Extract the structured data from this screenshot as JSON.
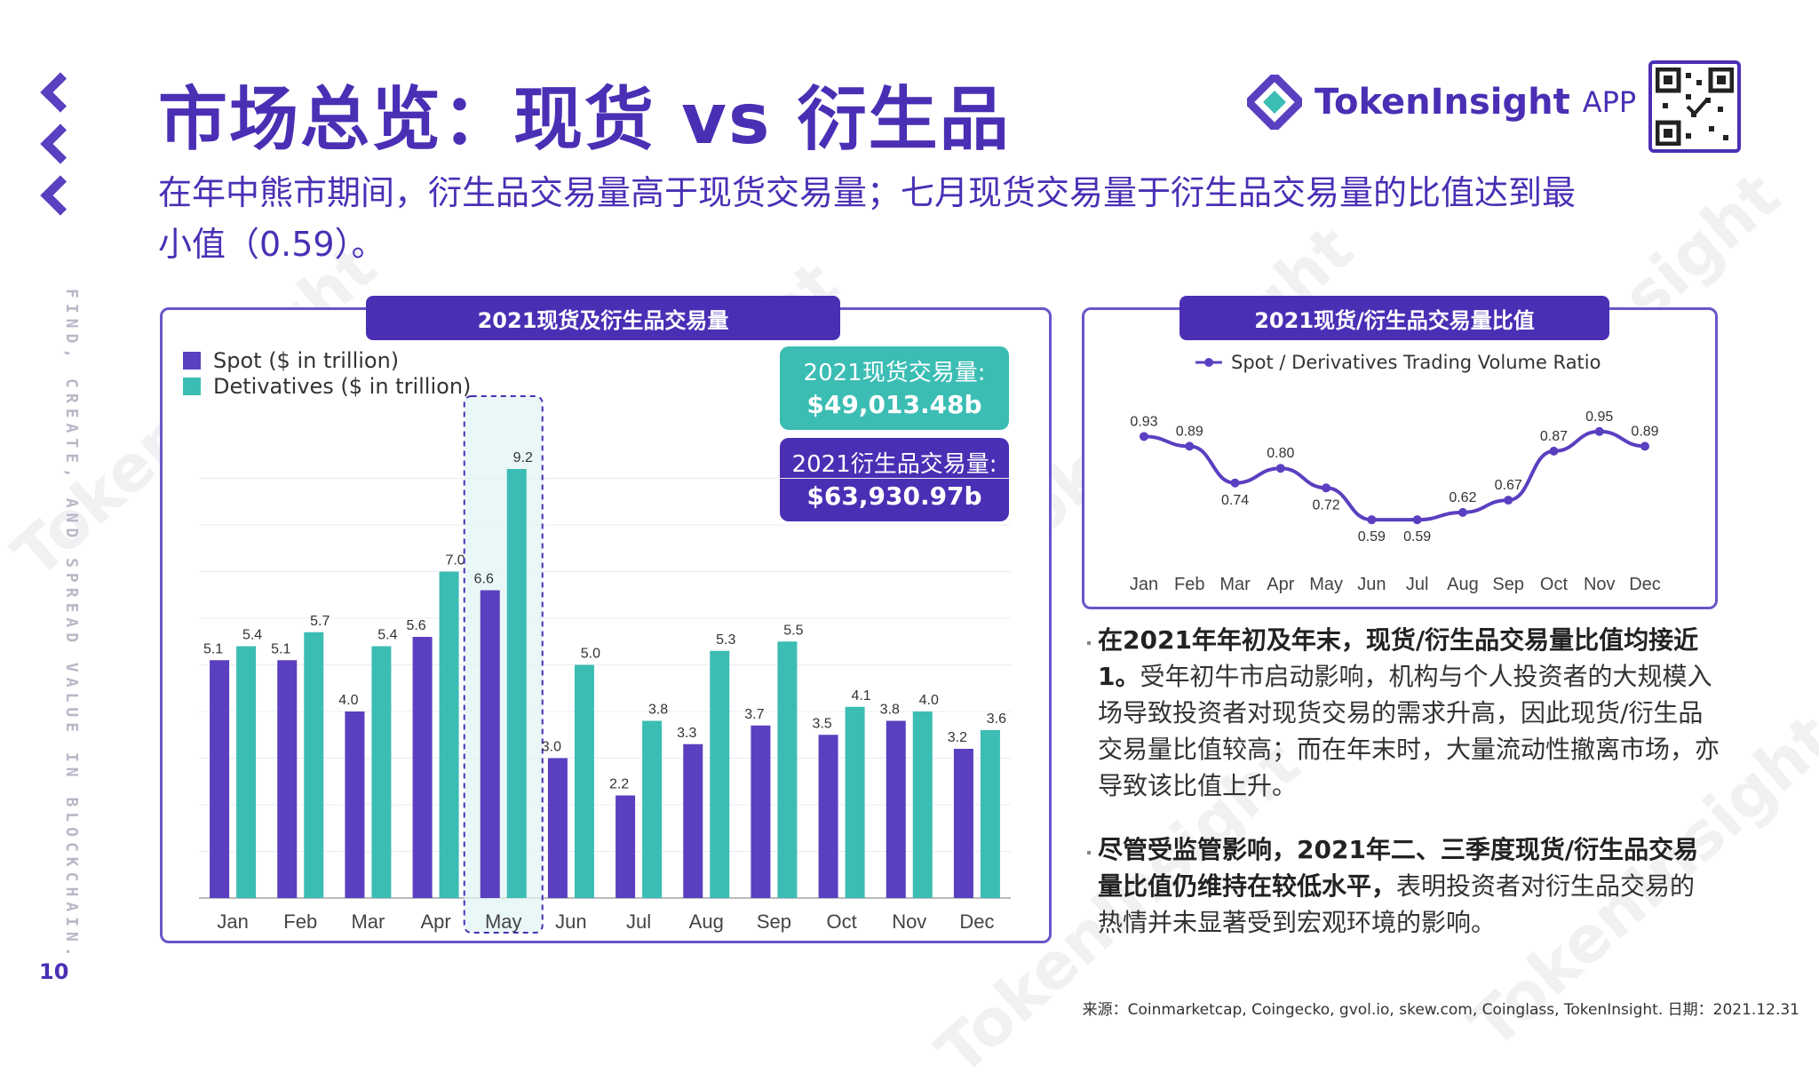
{
  "title": "市场总览：现货 vs 衍生品",
  "subtitle": "在年中熊市期间，衍生品交易量高于现货交易量；七月现货交易量于衍生品交易量的比值达到最小值（0.59）。",
  "brand": {
    "name": "TokenInsight",
    "app": "APP"
  },
  "tagline": "FIND, CREATE, AND SPREAD VALUE IN BLOCKCHAIN.",
  "page_number": "10",
  "left_panel": {
    "tab": "2021现货及衍生品交易量",
    "callout_spot": {
      "label": "2021现货交易量:",
      "value": "$49,013.48b"
    },
    "callout_deriv": {
      "label": "2021衍生品交易量:",
      "value": "$63,930.97b"
    }
  },
  "right_panel": {
    "tab": "2021现货/衍生品交易量比值"
  },
  "notes": {
    "p1_bold": "在2021年年初及年末，现货/衍生品交易量比值均接近1。",
    "p1_rest": "受年初牛市启动影响，机构与个人投资者的大规模入场导致投资者对现货交易的需求升高，因此现货/衍生品交易量比值较高；而在年末时，大量流动性撤离市场，亦导致该比值上升。",
    "p2_bold": "尽管受监管影响，2021年二、三季度现货/衍生品交易量比值仍维持在较低水平，",
    "p2_rest": "表明投资者对衍生品交易的热情并未显著受到宏观环境的影响。"
  },
  "source": "来源：Coinmarketcap, Coingecko, gvol.io, skew.com, Coinglass, TokenInsight. 日期：2021.12.31",
  "watermark": "TokenInsight",
  "colors": {
    "purple": "#5a3fc0",
    "teal": "#3bbdb4",
    "brand": "#4a2fb5"
  },
  "chart_data": [
    {
      "type": "bar",
      "categories": [
        "Jan",
        "Feb",
        "Mar",
        "Apr",
        "May",
        "Jun",
        "Jul",
        "Aug",
        "Sep",
        "Oct",
        "Nov",
        "Dec"
      ],
      "series": [
        {
          "name": "Spot ($ in trillion)",
          "values": [
            5.1,
            5.1,
            4.0,
            5.6,
            6.6,
            3.0,
            2.2,
            3.3,
            3.7,
            3.5,
            3.8,
            3.2
          ]
        },
        {
          "name": "Detivatives ($ in trillion)",
          "values": [
            5.4,
            5.7,
            5.4,
            7.0,
            9.2,
            5.0,
            3.8,
            5.3,
            5.5,
            4.1,
            4.0,
            3.6
          ]
        }
      ],
      "highlight_category": "May",
      "ylim": [
        0,
        10
      ],
      "grid": true,
      "legend": "top-left"
    },
    {
      "type": "line",
      "categories": [
        "Jan",
        "Feb",
        "Mar",
        "Apr",
        "May",
        "Jun",
        "Jul",
        "Aug",
        "Sep",
        "Oct",
        "Nov",
        "Dec"
      ],
      "series": [
        {
          "name": "Spot / Derivatives Trading Volume Ratio",
          "values": [
            0.93,
            0.89,
            0.74,
            0.8,
            0.72,
            0.59,
            0.59,
            0.62,
            0.67,
            0.87,
            0.95,
            0.89
          ]
        }
      ],
      "ylim": [
        0.5,
        1.0
      ],
      "grid": false,
      "legend": "top"
    }
  ]
}
